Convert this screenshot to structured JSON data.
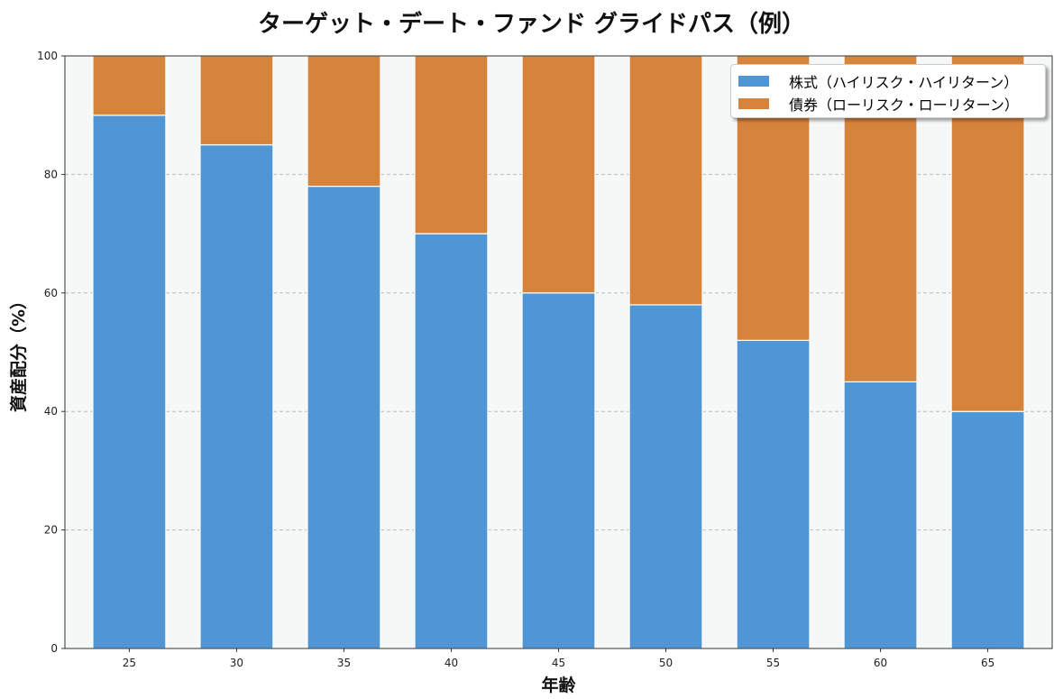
{
  "chart_data": {
    "type": "bar",
    "stacked": true,
    "title": "ターゲット・デート・ファンド グライドパス（例）",
    "xlabel": "年齢",
    "ylabel": "資産配分（%）",
    "categories": [
      "25",
      "30",
      "35",
      "40",
      "45",
      "50",
      "55",
      "60",
      "65"
    ],
    "series": [
      {
        "name": "株式（ハイリスク・ハイリターン）",
        "color": "#5096d5",
        "values": [
          90,
          85,
          78,
          70,
          60,
          58,
          52,
          45,
          40
        ]
      },
      {
        "name": "債券（ローリスク・ローリターン）",
        "color": "#d6843b",
        "values": [
          10,
          15,
          22,
          30,
          40,
          42,
          48,
          55,
          60
        ]
      }
    ],
    "ylim": [
      0,
      100
    ],
    "yticks": [
      "0",
      "20",
      "40",
      "60",
      "80",
      "100"
    ],
    "grid": "y-dashed",
    "legend": "top-right",
    "background": "#f6f7f7"
  }
}
